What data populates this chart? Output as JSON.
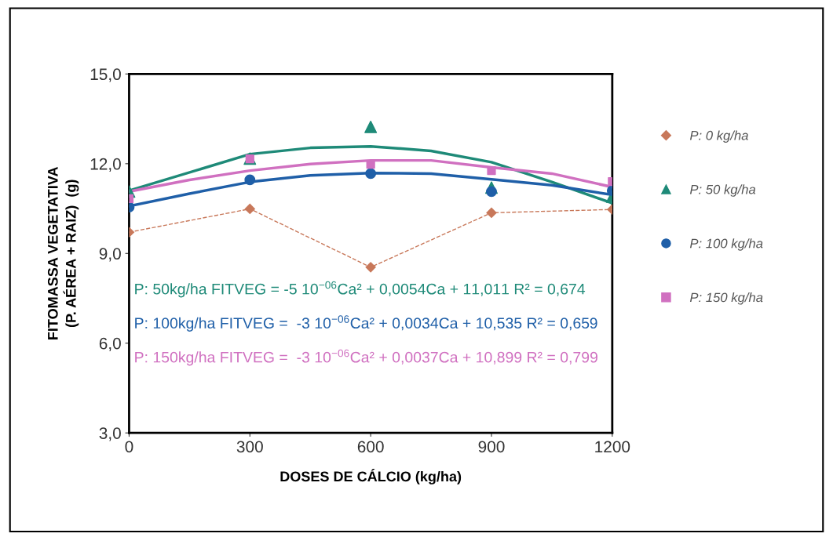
{
  "chart_data": {
    "type": "scatter",
    "xlabel": "DOSES DE CÁLCIO (kg/ha)",
    "ylabel": "FITOMASSA VEGETATIVA\n(P. AÉREA + RAIZ)  (g)",
    "xlim": [
      0,
      1200
    ],
    "xticks": [
      0,
      300,
      600,
      900,
      1200
    ],
    "ylim": [
      3,
      15
    ],
    "yticks": [
      {
        "value": 3,
        "label": "3,0"
      },
      {
        "value": 6,
        "label": "6,0"
      },
      {
        "value": 9,
        "label": "9,0"
      },
      {
        "value": 12,
        "label": "12,0"
      },
      {
        "value": 15,
        "label": "15,0"
      }
    ],
    "grid": false,
    "legend": "right",
    "series": [
      {
        "name": "P: 0 kg/ha",
        "type": "line",
        "marker": "diamond",
        "line_style": "dashed",
        "color": "#c8785a",
        "x": [
          0,
          300,
          600,
          900,
          1200
        ],
        "values": [
          9.71,
          10.49,
          8.54,
          10.36,
          10.47
        ]
      },
      {
        "name": "P: 50 kg/ha",
        "marker": "triangle",
        "color": "#1e8a78",
        "x": [
          0,
          300,
          600,
          900,
          1200
        ],
        "values": [
          11.07,
          12.17,
          13.23,
          11.2,
          10.9
        ]
      },
      {
        "name": "P: 100 kg/ha",
        "marker": "circle",
        "color": "#1f5fa8",
        "x": [
          0,
          300,
          600,
          900,
          1200
        ],
        "values": [
          10.55,
          11.46,
          11.67,
          11.07,
          11.1
        ]
      },
      {
        "name": "P: 150 kg/ha",
        "marker": "square",
        "color": "#d070c0",
        "x": [
          0,
          300,
          600,
          900,
          1200
        ],
        "values": [
          10.83,
          12.16,
          11.98,
          11.77,
          11.4
        ]
      },
      {
        "type": "line",
        "marker": "none",
        "color": "#1e8a78",
        "x": [
          0,
          300,
          450,
          600,
          750,
          900,
          1050,
          1200
        ],
        "values": [
          11.1,
          12.32,
          12.53,
          12.58,
          12.43,
          12.05,
          11.39,
          10.68
        ]
      },
      {
        "type": "line",
        "marker": "none",
        "color": "#1f5fa8",
        "x": [
          0,
          150,
          300,
          450,
          600,
          750,
          900,
          1050,
          1200
        ],
        "values": [
          10.58,
          11.0,
          11.39,
          11.61,
          11.69,
          11.67,
          11.48,
          11.28,
          10.96
        ]
      },
      {
        "type": "line",
        "marker": "none",
        "color": "#d070c0",
        "x": [
          0,
          150,
          300,
          450,
          600,
          750,
          900,
          1050,
          1200
        ],
        "values": [
          11.07,
          11.46,
          11.77,
          11.99,
          12.11,
          12.11,
          11.88,
          11.67,
          11.22
        ]
      }
    ],
    "annotations": [
      "P: 50kg/ha FITVEG = -5 10$^{−06}$Ca² + 0,0054Ca + 11,011 R² = 0,674",
      "P: 100kg/ha FITVEG =  -3 10$^{−06}$Ca² + 0,0034Ca + 10,535 R² = 0,659",
      "P: 150kg/ha FITVEG =  -3 10$^{−06}$Ca² + 0,0037Ca + 10,899 R² = 0,799"
    ]
  }
}
